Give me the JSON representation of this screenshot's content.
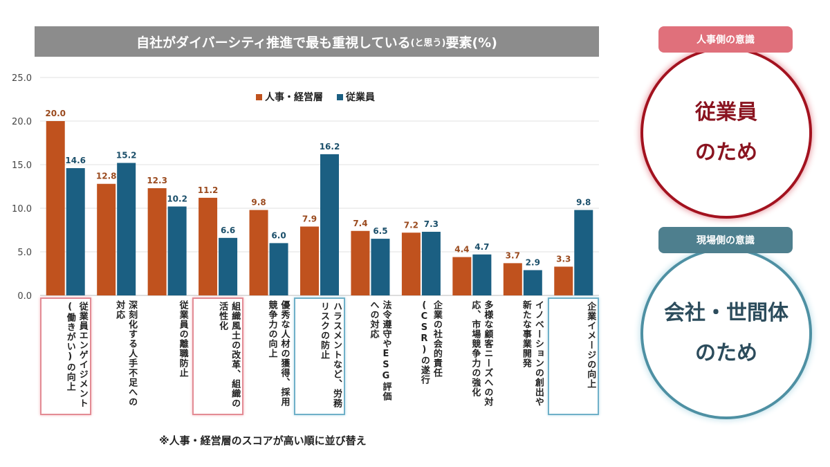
{
  "title": {
    "main": "自社がダイバーシティ推進で最も重視している",
    "sub": "(と思う)",
    "end": "要素(%)"
  },
  "legend": {
    "series1": "人事・経営層",
    "series2": "従業員"
  },
  "note": "※人事・経営層のスコアが高い順に並び替え",
  "colors": {
    "series1": "#c0521e",
    "series2": "#1b5f82",
    "title_bg": "#8c8c8c",
    "red": "#a3121f",
    "blue": "#4e90a3"
  },
  "chart_data": {
    "type": "bar",
    "title": "自社がダイバーシティ推進で最も重視している(と思う)要素(%)",
    "ylim": [
      0,
      25
    ],
    "yticks": [
      "0.0",
      "5.0",
      "10.0",
      "15.0",
      "20.0",
      "25.0"
    ],
    "grid": true,
    "legend_position": "top",
    "categories": [
      "従業員エンゲイジメント(働きがい)の向上",
      "深刻化する人手不足への対応",
      "従業員の離職防止",
      "組織風土の改革、組織の活性化",
      "優秀な人材の獲得、採用競争力の向上",
      "ハラスメントなど、労務リスクの防止",
      "法令遵守やESG評価への対応",
      "企業の社会的責任(CSR)の遂行",
      "多様な顧客ニーズへの対応、市場競争力の強化",
      "イノベーションの創出や新たな事業開発",
      "企業イメージの向上"
    ],
    "series": [
      {
        "name": "人事・経営層",
        "values": [
          20.0,
          12.8,
          12.3,
          11.2,
          9.8,
          7.9,
          7.4,
          7.2,
          4.4,
          3.7,
          3.3
        ]
      },
      {
        "name": "従業員",
        "values": [
          14.6,
          15.2,
          10.2,
          6.6,
          6.0,
          16.2,
          6.5,
          7.3,
          4.7,
          2.9,
          9.8
        ]
      }
    ],
    "highlight": [
      "red",
      "none",
      "none",
      "red",
      "none",
      "blue",
      "none",
      "none",
      "none",
      "none",
      "blue"
    ]
  },
  "side": {
    "hr": {
      "pill": "人事側の意識",
      "line1": "従業員",
      "line2": "のため"
    },
    "field": {
      "pill": "現場側の意識",
      "line1": "会社・世間体",
      "line2": "のため"
    }
  }
}
